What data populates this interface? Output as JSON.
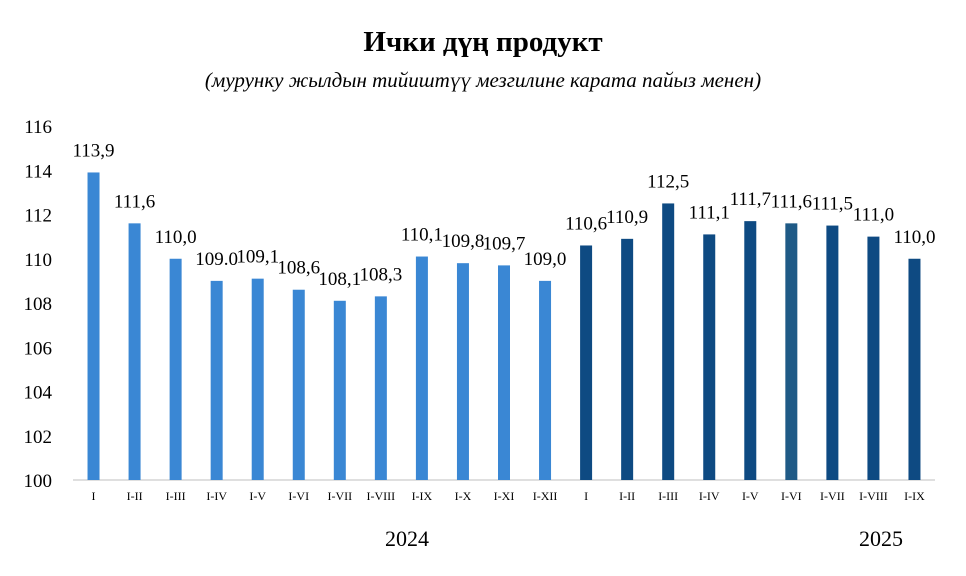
{
  "chart_data": {
    "type": "bar",
    "title": "Ички дүң продукт",
    "subtitle": "(мурунку жылдын тийиштүү мезгилине карата пайыз менен)",
    "ylim": [
      100,
      116
    ],
    "yticks": [
      "100",
      "102",
      "104",
      "106",
      "108",
      "110",
      "112",
      "114",
      "116"
    ],
    "grid": false,
    "legend": "none",
    "categories": [
      "I",
      "I-II",
      "I-III",
      "I-IV",
      "I-V",
      "I-VI",
      "I-VII",
      "I-VIII",
      "I-IX",
      "I-X",
      "I-XI",
      "I-XII",
      "I",
      "I-II",
      "I-III",
      "I-IV",
      "I-V",
      "I-VI",
      "I-VII",
      "I-VIII",
      "I-IX"
    ],
    "values": [
      113.9,
      111.6,
      110.0,
      109.0,
      109.1,
      108.6,
      108.1,
      108.3,
      110.1,
      109.8,
      109.7,
      109.0,
      110.6,
      110.9,
      112.5,
      111.1,
      111.7,
      111.6,
      111.5,
      111.0,
      110.0
    ],
    "value_labels": [
      "113,9",
      "111,6",
      "110,0",
      "109.0",
      "109,1",
      "108,6",
      "108,1",
      "108,3",
      "110,1",
      "109,8",
      "109,7",
      "109,0",
      "110,6",
      "110,9",
      "112,5",
      "111,1",
      "111,7",
      "111,6",
      "111,5",
      "111,0",
      "110,0"
    ],
    "groups": [
      {
        "label": "2024",
        "start": 0,
        "count": 12,
        "color": "#3a87d4"
      },
      {
        "label": "2025",
        "start": 12,
        "count": 9,
        "color": "#0e4a82"
      }
    ],
    "highlight": {
      "index": 17,
      "color": "#1f5a86"
    }
  }
}
